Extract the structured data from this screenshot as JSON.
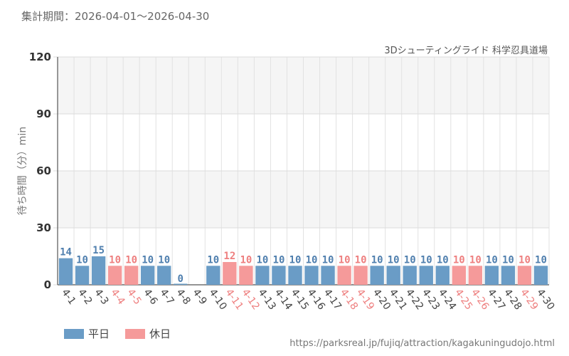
{
  "header": {
    "period": "集計期間：2026-04-01～2026-04-30"
  },
  "chart_data": {
    "type": "bar",
    "subtitle": "3Dシューティングライド 科学忍具道場",
    "ylabel": "待ち時間（分）min",
    "ylim": [
      0,
      120
    ],
    "yticks": [
      "0",
      "30",
      "60",
      "90",
      "120"
    ],
    "grid": true,
    "legend_position": "bottom-left",
    "categories": [
      "4-1",
      "4-2",
      "4-3",
      "4-4",
      "4-5",
      "4-6",
      "4-7",
      "4-8",
      "4-9",
      "4-10",
      "4-11",
      "4-12",
      "4-13",
      "4-14",
      "4-15",
      "4-16",
      "4-17",
      "4-18",
      "4-19",
      "4-20",
      "4-21",
      "4-22",
      "4-23",
      "4-24",
      "4-25",
      "4-26",
      "4-27",
      "4-28",
      "4-29",
      "4-30"
    ],
    "values": [
      14,
      10,
      15,
      10,
      10,
      10,
      10,
      0,
      null,
      10,
      12,
      10,
      10,
      10,
      10,
      10,
      10,
      10,
      10,
      10,
      10,
      10,
      10,
      10,
      10,
      10,
      10,
      10,
      10,
      10
    ],
    "labels": [
      "14",
      "10",
      "15",
      "10",
      "10",
      "10",
      "10",
      "0",
      "",
      "10",
      "12",
      "10",
      "10",
      "10",
      "10",
      "10",
      "10",
      "10",
      "10",
      "10",
      "10",
      "10",
      "10",
      "10",
      "10",
      "10",
      "10",
      "10",
      "10",
      "10"
    ],
    "day_type": [
      "weekday",
      "weekday",
      "weekday",
      "holiday",
      "holiday",
      "weekday",
      "weekday",
      "weekday",
      "weekday",
      "weekday",
      "holiday",
      "holiday",
      "weekday",
      "weekday",
      "weekday",
      "weekday",
      "weekday",
      "holiday",
      "holiday",
      "weekday",
      "weekday",
      "weekday",
      "weekday",
      "weekday",
      "holiday",
      "holiday",
      "weekday",
      "weekday",
      "holiday",
      "weekday"
    ],
    "series": [
      {
        "key": "weekday",
        "name": "平日",
        "color": "#6a9cc6",
        "label_color": "#4f7fae"
      },
      {
        "key": "holiday",
        "name": "休日",
        "color": "#f59a9a",
        "label_color": "#ee7f7f"
      }
    ]
  },
  "footer": {
    "source_url": "https://parksreal.jp/fujiq/attraction/kagakuningudojo.html"
  }
}
